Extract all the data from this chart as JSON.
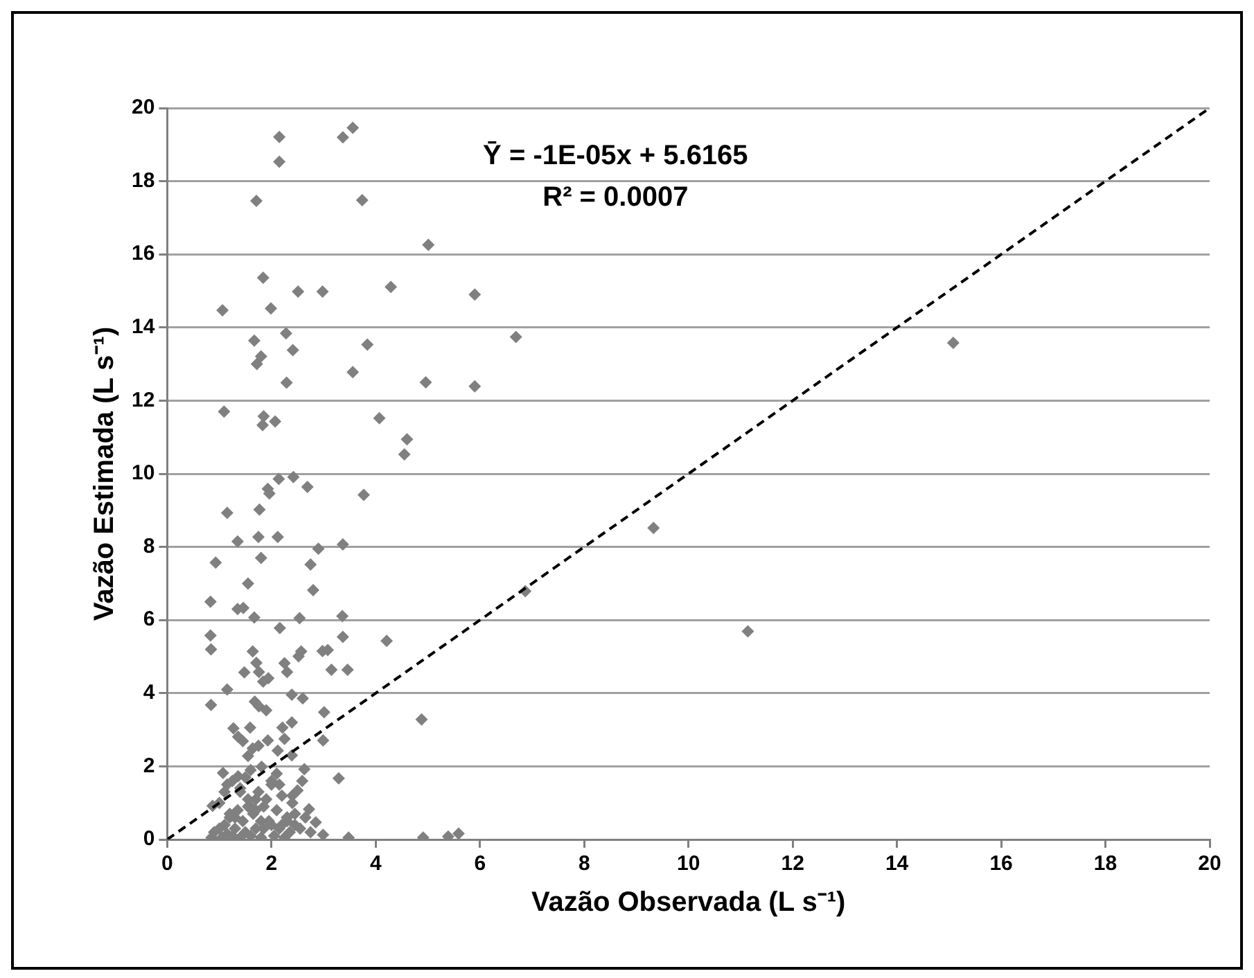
{
  "chart_data": {
    "type": "scatter",
    "xlabel": "Vazão Observada (L s⁻¹)",
    "ylabel": "Vazão Estimada (L s⁻¹)",
    "annotations": [
      "Ȳ = -1E-05x + 5.6165",
      "R² = 0.0007"
    ],
    "xlim": [
      0,
      20
    ],
    "xticks": [
      0,
      2,
      4,
      6,
      8,
      10,
      12,
      14,
      16,
      18,
      20
    ],
    "ylim": [
      0,
      20
    ],
    "yticks": [
      0,
      2,
      4,
      6,
      8,
      10,
      12,
      14,
      16,
      18,
      20
    ],
    "grid": "y",
    "legend": false,
    "series": [
      {
        "color": "#808080",
        "marker": "diamond",
        "x": [
          2.15,
          2.15,
          3.37,
          3.56,
          1.71,
          3.74,
          5.01,
          1.84,
          2.51,
          2.98,
          4.29,
          5.9,
          1.06,
          1.99,
          1.67,
          2.28,
          3.84,
          1.8,
          1.72,
          2.41,
          3.56,
          2.29,
          4.96,
          5.9,
          1.09,
          1.85,
          1.83,
          2.07,
          4.07,
          4.6,
          4.55,
          2.14,
          2.42,
          6.69,
          15.08,
          1.93,
          1.96,
          2.69,
          3.77,
          1.15,
          1.77,
          1.35,
          1.75,
          2.12,
          2.9,
          3.37,
          0.93,
          1.8,
          2.75,
          1.55,
          2.8,
          0.83,
          1.35,
          1.46,
          1.67,
          2.54,
          3.36,
          2.16,
          0.83,
          3.37,
          0.84,
          1.64,
          2.57,
          2.52,
          2.98,
          3.08,
          4.21,
          1.71,
          1.48,
          2.25,
          1.76,
          2.3,
          3.15,
          3.46,
          1.84,
          1.94,
          1.15,
          2.39,
          2.6,
          0.84,
          1.68,
          1.76,
          1.9,
          3.01,
          4.88,
          1.59,
          1.27,
          2.21,
          2.39,
          1.36,
          1.45,
          1.93,
          2.99,
          1.64,
          1.75,
          2.25,
          2.12,
          1.55,
          2.39,
          1.81,
          1.07,
          2.63,
          3.29,
          1.15,
          1.36,
          2.59,
          0.87,
          2.5,
          2.72,
          2.85,
          2.99,
          3.48,
          4.91,
          5.39,
          5.59,
          9.33,
          6.87,
          11.14,
          0.85,
          0.9,
          1.0,
          1.05,
          1.1,
          1.15,
          1.2,
          1.25,
          1.3,
          1.35,
          1.4,
          1.45,
          1.5,
          1.55,
          1.6,
          1.65,
          1.7,
          1.75,
          1.8,
          1.85,
          1.95,
          2.0,
          2.05,
          2.1,
          2.15,
          2.2,
          2.25,
          2.3,
          2.35,
          2.4,
          2.45,
          2.55,
          2.65,
          2.75,
          1.0,
          1.2,
          1.4,
          1.6,
          1.8,
          2.0,
          2.2,
          2.4,
          1.1,
          1.3,
          1.5,
          1.7,
          1.9,
          2.1,
          2.3,
          1.25,
          1.55,
          1.85,
          2.15,
          2.45,
          1.4,
          1.7,
          2.0,
          2.3,
          1.6
        ],
        "values": [
          19.21,
          18.53,
          19.2,
          19.46,
          17.46,
          17.48,
          16.26,
          15.36,
          14.98,
          14.98,
          15.11,
          14.9,
          14.47,
          14.52,
          13.64,
          13.84,
          13.53,
          13.21,
          13.0,
          13.38,
          12.78,
          12.49,
          12.5,
          12.39,
          11.7,
          11.57,
          11.33,
          11.43,
          11.52,
          10.94,
          10.53,
          9.86,
          9.91,
          13.74,
          13.58,
          9.59,
          9.46,
          9.64,
          9.42,
          8.93,
          9.02,
          8.15,
          8.27,
          8.27,
          7.95,
          8.07,
          7.57,
          7.7,
          7.52,
          7.0,
          6.82,
          6.5,
          6.3,
          6.33,
          6.07,
          6.05,
          6.11,
          5.78,
          5.58,
          5.54,
          5.2,
          5.14,
          5.14,
          5.01,
          5.15,
          5.18,
          5.43,
          4.83,
          4.57,
          4.82,
          4.58,
          4.58,
          4.64,
          4.64,
          4.32,
          4.41,
          4.1,
          3.96,
          3.86,
          3.68,
          3.77,
          3.64,
          3.53,
          3.48,
          3.28,
          3.06,
          3.04,
          3.06,
          3.2,
          2.81,
          2.69,
          2.71,
          2.71,
          2.49,
          2.56,
          2.75,
          2.43,
          2.28,
          2.3,
          1.99,
          1.82,
          1.92,
          1.67,
          1.5,
          1.73,
          1.6,
          0.92,
          1.34,
          0.83,
          0.47,
          0.13,
          0.05,
          0.05,
          0.08,
          0.16,
          8.52,
          6.79,
          5.69,
          0.05,
          0.2,
          0.3,
          0.05,
          0.4,
          0.15,
          0.6,
          0.1,
          0.3,
          0.8,
          0.05,
          0.5,
          0.2,
          1.1,
          0.1,
          0.7,
          0.3,
          1.3,
          0.05,
          0.9,
          0.5,
          1.5,
          0.1,
          0.8,
          0.3,
          1.2,
          0.05,
          0.6,
          0.2,
          1.0,
          0.4,
          0.3,
          0.6,
          0.2,
          1.0,
          0.7,
          1.4,
          0.9,
          0.5,
          1.6,
          0.4,
          1.2,
          1.3,
          0.6,
          1.7,
          0.8,
          1.1,
          1.8,
          0.5,
          1.6,
          0.9,
          0.3,
          1.5,
          0.7,
          1.3,
          1.1,
          0.4,
          0.6,
          1.9
        ]
      },
      {
        "type": "line",
        "color": "#000000",
        "line_style": "dashed",
        "marker": "none",
        "x": [
          0,
          20
        ],
        "values": [
          0,
          20
        ]
      }
    ]
  }
}
